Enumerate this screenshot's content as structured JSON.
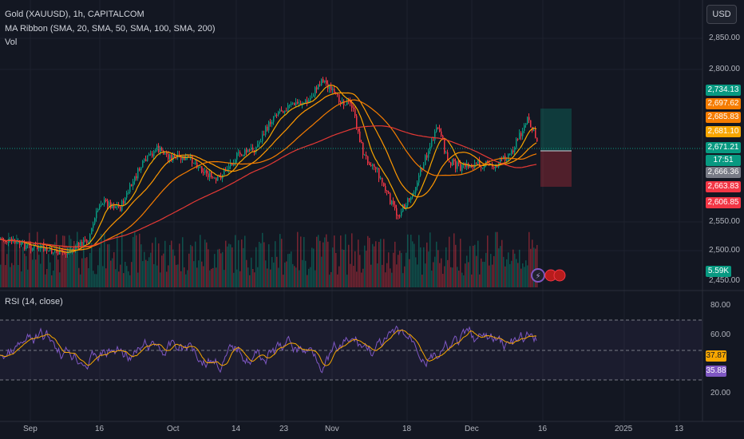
{
  "header": {
    "symbol": "Gold (XAUUSD), 1h, CAPITALCOM",
    "ma_ribbon": "MA Ribbon (SMA, 20, SMA, 50, SMA, 100, SMA, 200)",
    "vol": "Vol",
    "rsi": "RSI (14, close)"
  },
  "currency_button": "USD",
  "price_axis": [
    "2,850.00",
    "2,800.00",
    "2,550.00",
    "2,500.00",
    "2,450.00"
  ],
  "rsi_axis": [
    "80.00",
    "60.00",
    "20.00"
  ],
  "price_tags": [
    {
      "label": "2,734.13",
      "color": "#089981"
    },
    {
      "label": "2,697.62",
      "color": "#f57c00"
    },
    {
      "label": "2,685.83",
      "color": "#f57c00"
    },
    {
      "label": "2,681.10",
      "color": "#f7a600"
    },
    {
      "label": "2,671.21",
      "color": "#089981"
    },
    {
      "label": "17:51",
      "color": "#089981"
    },
    {
      "label": "2,666.36",
      "color": "#787b86"
    },
    {
      "label": "2,663.83",
      "color": "#f23645"
    },
    {
      "label": "2,606.85",
      "color": "#f23645"
    }
  ],
  "vol_tag": {
    "label": "5.59K",
    "color": "#089981"
  },
  "rsi_tags": [
    {
      "label": "37.87",
      "color": "#f7a600"
    },
    {
      "label": "35.88",
      "color": "#7e57c2"
    }
  ],
  "time_axis": [
    "Sep",
    "16",
    "Oct",
    "14",
    "23",
    "Nov",
    "18",
    "Dec",
    "16",
    "2025",
    "13"
  ],
  "colors": {
    "background": "#131722",
    "up": "#089981",
    "down": "#f23645",
    "rsi_line": "#7e57c2",
    "rsi_ma": "#f7a600"
  },
  "icons": [
    "lightning-icon",
    "us-flag-icon",
    "us-flag-icon"
  ]
}
